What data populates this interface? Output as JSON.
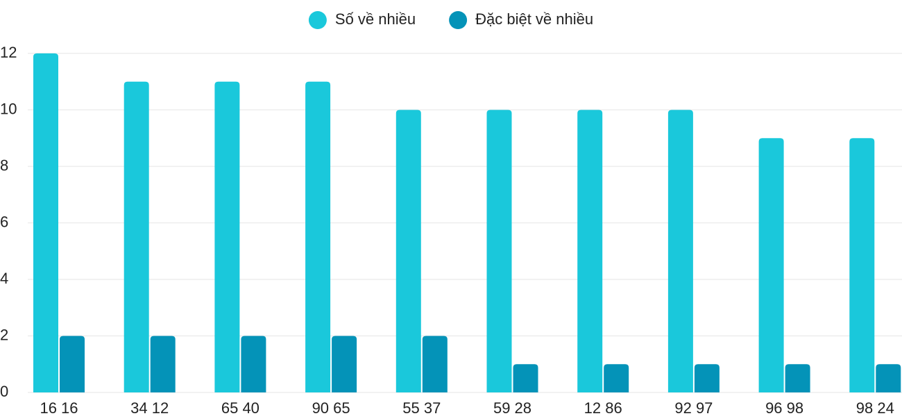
{
  "chart_data": {
    "type": "bar",
    "categories": [
      "16 16",
      "34 12",
      "65 40",
      "90 65",
      "55 37",
      "59 28",
      "12 86",
      "92 97",
      "96 98",
      "98 24"
    ],
    "series": [
      {
        "name": "Số về nhiều",
        "color": "#1ac8db",
        "values": [
          12,
          11,
          11,
          11,
          10,
          10,
          10,
          10,
          9,
          9
        ]
      },
      {
        "name": "Đặc biệt về nhiều",
        "color": "#0493b8",
        "values": [
          2,
          2,
          2,
          2,
          2,
          1,
          1,
          1,
          1,
          1
        ]
      }
    ],
    "ylim": [
      0,
      12
    ],
    "yticks": [
      0,
      2,
      4,
      6,
      8,
      10,
      12
    ],
    "grid": true,
    "legend": "top"
  }
}
